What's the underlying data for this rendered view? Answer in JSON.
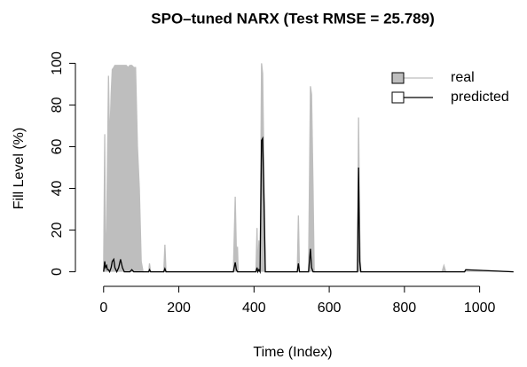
{
  "chart_data": {
    "type": "line",
    "title": "SPO–tuned NARX (Test RMSE = 25.789)",
    "x_label": "Time (Index)",
    "y_label": "Fill Level (%)",
    "x": [
      0,
      3,
      5,
      8,
      10,
      13,
      16,
      20,
      23,
      27,
      30,
      35,
      40,
      45,
      50,
      55,
      60,
      65,
      70,
      75,
      80,
      85,
      90,
      95,
      100,
      105,
      110,
      120,
      122,
      125,
      160,
      163,
      166,
      300,
      345,
      350,
      353,
      356,
      358,
      405,
      408,
      410,
      413,
      416,
      420,
      423,
      427,
      430,
      435,
      515,
      518,
      521,
      545,
      550,
      553,
      557,
      560,
      675,
      678,
      681,
      684,
      720,
      900,
      905,
      910,
      925,
      960,
      963,
      1090
    ],
    "series": [
      {
        "name": "real",
        "color": "#bebebe",
        "fill": true,
        "values": [
          0,
          66,
          5,
          20,
          50,
          94,
          60,
          85,
          97,
          98,
          99,
          99,
          99,
          99,
          99,
          99,
          99,
          98,
          99,
          99,
          98,
          98,
          60,
          40,
          5,
          0,
          0,
          0,
          4,
          0,
          0,
          13,
          0,
          0,
          0,
          36,
          10,
          12,
          0,
          0,
          21,
          0,
          15,
          0,
          100,
          95,
          40,
          0,
          0,
          0,
          27,
          0,
          0,
          89,
          85,
          40,
          0,
          0,
          74,
          20,
          0,
          0,
          0,
          3,
          0,
          0,
          0,
          1,
          0
        ]
      },
      {
        "name": "predicted",
        "color": "#000000",
        "fill": false,
        "values": [
          0,
          5,
          2,
          3,
          1,
          1,
          0,
          2,
          5,
          6,
          2,
          0,
          2,
          6,
          2,
          0,
          0,
          0,
          0,
          1,
          0,
          0,
          0,
          0,
          0,
          0,
          0,
          0,
          1,
          0,
          0,
          1.5,
          0,
          0,
          0,
          4.5,
          1,
          0,
          0,
          0,
          2,
          0,
          1,
          0,
          63,
          64,
          30,
          0,
          0,
          0,
          4,
          0,
          0,
          11,
          2,
          0,
          0,
          0,
          50,
          5,
          0,
          0,
          0,
          0,
          0,
          0,
          0,
          1,
          0
        ]
      }
    ],
    "xlim": [
      -75,
      1100
    ],
    "ylim": [
      -4,
      104
    ],
    "xticks": [
      0,
      200,
      400,
      600,
      800,
      1000
    ],
    "yticks": [
      0,
      20,
      40,
      60,
      80,
      100
    ],
    "legend": "top-right"
  }
}
